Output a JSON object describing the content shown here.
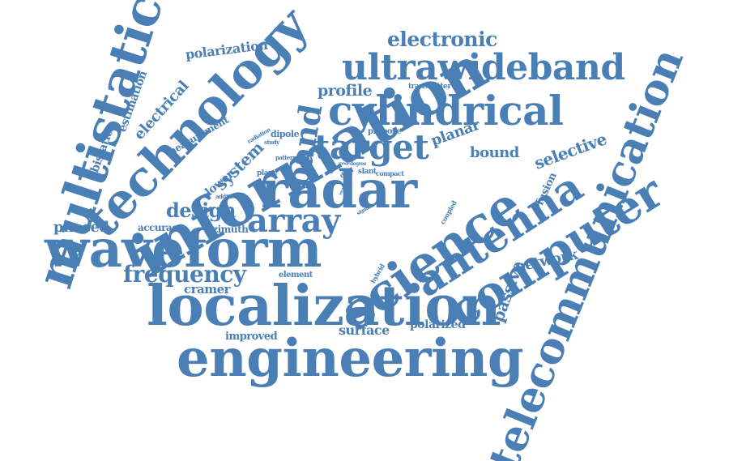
{
  "cloud": {
    "color": "#4a7fb5",
    "words": [
      "multistatic",
      "technology",
      "information",
      "telecommunication",
      "waveform",
      "localization",
      "engineering",
      "radar",
      "science",
      "computer",
      "antenna",
      "cylindrical",
      "ultrawideband",
      "target",
      "array",
      "band",
      "electronic",
      "frequency",
      "design",
      "polarization",
      "profile",
      "electrical",
      "estimation",
      "bistatic",
      "measurement",
      "system",
      "lower",
      "phased",
      "accuracy",
      "azimuth",
      "cramer",
      "improved",
      "surface",
      "polarized",
      "network",
      "passive",
      "fusion",
      "selective",
      "bound",
      "planar",
      "propose",
      "transmitter",
      "dipole",
      "radiation",
      "study",
      "pattern",
      "plane",
      "addition",
      "height",
      "pair",
      "dual",
      "slant",
      "compact",
      "range",
      "degree",
      "coupled",
      "hybrid",
      "signal",
      "element",
      "vector"
    ]
  }
}
